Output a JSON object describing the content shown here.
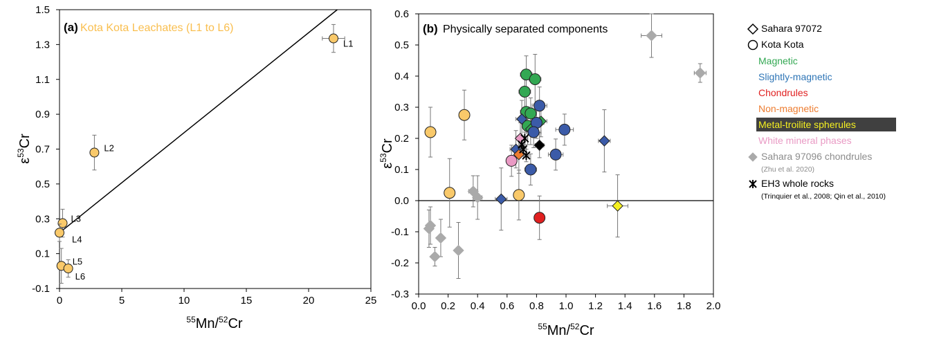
{
  "chart_data": [
    {
      "type": "scatter",
      "panel_tag": "(a)",
      "title": "Kota Kota Leachates (L1 to L6)",
      "title_color": "#F9BE4E",
      "xlabel_sup": "55",
      "xlabel_mid": "Mn/",
      "xlabel_sup2": "52",
      "xlabel_end": "Cr",
      "ylabel_pre": "ε",
      "ylabel_sup": "53",
      "ylabel_end": "Cr",
      "xlim": [
        0,
        25
      ],
      "ylim": [
        -0.1,
        1.5
      ],
      "xticks": [
        0,
        5,
        10,
        15,
        20,
        25
      ],
      "yticks": [
        -0.1,
        0.1,
        0.3,
        0.5,
        0.7,
        0.9,
        1.1,
        1.3,
        1.5
      ],
      "ytick_labels": [
        "-0.1",
        "0.1",
        "0.3",
        "0.5",
        "0.7",
        "0.9",
        "1.1",
        "1.3",
        "1.5"
      ],
      "regression_line": [
        [
          0,
          0.22
        ],
        [
          22.3,
          1.5
        ]
      ],
      "point_color": "#F9C96A",
      "points": [
        {
          "label": "L1",
          "x": 22.0,
          "y": 1.335,
          "xerr": 0.9,
          "yerr": 0.08
        },
        {
          "label": "L2",
          "x": 2.8,
          "y": 0.68,
          "xerr": 0,
          "yerr": 0.1
        },
        {
          "label": "L3",
          "x": 0.25,
          "y": 0.275,
          "xerr": 0,
          "yerr": 0.08
        },
        {
          "label": "L4",
          "x": 0.0,
          "y": 0.22,
          "xerr": 0,
          "yerr": 0.05
        },
        {
          "label": "L5",
          "x": 0.15,
          "y": 0.03,
          "xerr": 0,
          "yerr": 0.1
        },
        {
          "label": "L6",
          "x": 0.7,
          "y": 0.015,
          "xerr": 0,
          "yerr": 0.05
        }
      ]
    },
    {
      "type": "scatter",
      "panel_tag": "(b)",
      "title": "Physically separated components",
      "xlabel_sup": "55",
      "xlabel_mid": "Mn/",
      "xlabel_sup2": "52",
      "xlabel_end": "Cr",
      "ylabel_pre": "ε",
      "ylabel_sup": "53",
      "ylabel_end": "Cr",
      "xlim": [
        0.0,
        2.0
      ],
      "ylim": [
        -0.3,
        0.6
      ],
      "xticks": [
        0.0,
        0.2,
        0.4,
        0.6,
        0.8,
        1.0,
        1.2,
        1.4,
        1.6,
        1.8,
        2.0
      ],
      "xtick_labels": [
        "0.0",
        "0.2",
        "0.4",
        "0.6",
        "0.8",
        "1.0",
        "1.2",
        "1.4",
        "1.6",
        "1.8",
        "2.0"
      ],
      "yticks": [
        -0.3,
        -0.2,
        -0.1,
        0.0,
        0.1,
        0.2,
        0.3,
        0.4,
        0.5,
        0.6
      ],
      "ytick_labels": [
        "-0.3",
        "-0.2",
        "-0.1",
        "0.0",
        "0.1",
        "0.2",
        "0.3",
        "0.4",
        "0.5",
        "0.6"
      ],
      "zero_line": 0.0,
      "series": [
        {
          "name": "Sahara 97096 chondrules",
          "marker": "diamond",
          "color": "#AAAAAA",
          "points": [
            [
              0.07,
              -0.09,
              0.02,
              0.06
            ],
            [
              0.08,
              -0.08,
              0.02,
              0.06
            ],
            [
              0.11,
              -0.18,
              0.02,
              0.03
            ],
            [
              0.15,
              -0.12,
              0.02,
              0.06
            ],
            [
              0.27,
              -0.16,
              0.02,
              0.09
            ],
            [
              0.37,
              0.03,
              0.03,
              0.05
            ],
            [
              0.4,
              0.01,
              0.03,
              0.07
            ],
            [
              1.58,
              0.53,
              0.07,
              0.07
            ],
            [
              1.91,
              0.41,
              0.04,
              0.03
            ]
          ]
        },
        {
          "name": "Kota Kota Non-magnetic",
          "marker": "circle",
          "color": "#F9C96A",
          "points": [
            [
              0.08,
              0.22,
              0.02,
              0.08
            ],
            [
              0.21,
              0.025,
              0.02,
              0.11
            ],
            [
              0.31,
              0.275,
              0.02,
              0.08
            ],
            [
              0.68,
              0.018,
              0.02,
              0.08
            ]
          ]
        },
        {
          "name": "Kota Kota Magnetic",
          "marker": "circle",
          "color": "#33A853",
          "points": [
            [
              0.73,
              0.405,
              0.04,
              0.06
            ],
            [
              0.79,
              0.39,
              0.04,
              0.08
            ],
            [
              0.72,
              0.35,
              0.04,
              0.07
            ],
            [
              0.73,
              0.285,
              0.04,
              0.06
            ],
            [
              0.76,
              0.28,
              0.04,
              0.05
            ],
            [
              0.74,
              0.24,
              0.04,
              0.06
            ]
          ]
        },
        {
          "name": "Sahara 97072 Magnetic",
          "marker": "diamond",
          "color": "#33A853",
          "points": [
            [
              0.76,
              0.23,
              0.04,
              0.05
            ],
            [
              0.83,
              0.255,
              0.04,
              0.05
            ]
          ]
        },
        {
          "name": "Kota Kota Slightly-magnetic",
          "marker": "circle",
          "color": "#3B5BA8",
          "points": [
            [
              0.82,
              0.305,
              0.05,
              0.06
            ],
            [
              0.8,
              0.25,
              0.05,
              0.05
            ],
            [
              0.78,
              0.22,
              0.05,
              0.05
            ],
            [
              0.99,
              0.228,
              0.06,
              0.05
            ],
            [
              0.93,
              0.148,
              0.05,
              0.05
            ],
            [
              0.76,
              0.1,
              0.04,
              0.05
            ]
          ]
        },
        {
          "name": "Sahara 97072 Slightly-magnetic",
          "marker": "diamond",
          "color": "#3B5BA8",
          "points": [
            [
              0.7,
              0.262,
              0.04,
              0.06
            ],
            [
              0.66,
              0.165,
              0.04,
              0.06
            ],
            [
              1.26,
              0.192,
              0.04,
              0.1
            ],
            [
              0.56,
              0.005,
              0.04,
              0.1
            ]
          ]
        },
        {
          "name": "Chondrules",
          "marker": "circle",
          "color": "#E02020",
          "points": [
            [
              0.82,
              -0.055,
              0.02,
              0.07
            ]
          ]
        },
        {
          "name": "Non-magnetic",
          "marker": "diamond",
          "color": "#ED7D31",
          "points": [
            [
              0.68,
              0.148,
              0.03,
              0.06
            ]
          ]
        },
        {
          "name": "Metal-troilite spherules",
          "marker": "diamond",
          "color": "#F5F020",
          "points": [
            [
              1.35,
              -0.017,
              0.07,
              0.1
            ]
          ]
        },
        {
          "name": "White mineral phases Kota Kota",
          "marker": "circle",
          "color": "#E99AC4",
          "points": [
            [
              0.63,
              0.128,
              0.03,
              0.05
            ]
          ]
        },
        {
          "name": "White mineral phases Sahara 97072",
          "marker": "diamond",
          "color": "#E99AC4",
          "points": [
            [
              0.69,
              0.2,
              0.03,
              0.05
            ]
          ]
        },
        {
          "name": "Sahara 97072 black",
          "marker": "diamond",
          "color": "#000000",
          "points": [
            [
              0.82,
              0.178,
              0.03,
              0.04
            ]
          ]
        },
        {
          "name": "EH3 whole rocks",
          "marker": "star",
          "color": "#000000",
          "points": [
            [
              0.7,
              0.18,
              0.02,
              0.02
            ],
            [
              0.72,
              0.2,
              0.02,
              0.02
            ],
            [
              0.71,
              0.165,
              0.02,
              0.02
            ],
            [
              0.73,
              0.145,
              0.02,
              0.02
            ]
          ]
        }
      ]
    }
  ],
  "legend": {
    "items": [
      {
        "text": "Sahara 97072",
        "color": "#000000",
        "marker": "diamond-open",
        "note": ""
      },
      {
        "text": "Kota Kota",
        "color": "#000000",
        "marker": "circle-open",
        "note": ""
      },
      {
        "text": "Magnetic",
        "color": "#33A853",
        "marker": "",
        "note": ""
      },
      {
        "text": "Slightly-magnetic",
        "color": "#2E75B6",
        "marker": "",
        "note": ""
      },
      {
        "text": "Chondrules",
        "color": "#E02020",
        "marker": "",
        "note": ""
      },
      {
        "text": "Non-magnetic",
        "color": "#ED7D31",
        "marker": "",
        "note": ""
      },
      {
        "text": "Metal-troilite spherules",
        "color": "#F5F020",
        "marker": "",
        "note": "",
        "bg": "#404040"
      },
      {
        "text": "White mineral phases",
        "color": "#E99AC4",
        "marker": "",
        "note": ""
      },
      {
        "text": "Sahara 97096 chondrules",
        "color": "#8C8C8C",
        "marker": "diamond-grey",
        "note": "(Zhu et al. 2020)"
      },
      {
        "text": "EH3 whole rocks",
        "color": "#000000",
        "marker": "star",
        "note": "(Trinquier et al., 2008; Qin et al., 2010)"
      }
    ]
  }
}
